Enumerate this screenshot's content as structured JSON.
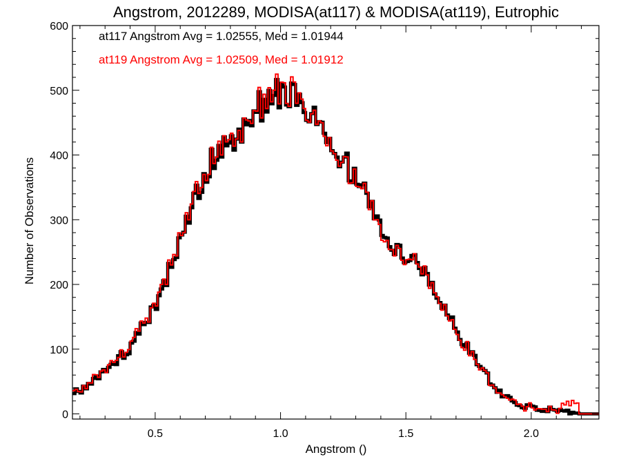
{
  "chart_data": {
    "type": "step-histogram",
    "title": "Angstrom, 2012289, MODISA(at117) & MODISA(at119), Eutrophic",
    "xlabel": "Angstrom ()",
    "ylabel": "Number of Observations",
    "xlim": [
      0.17,
      2.27
    ],
    "ylim": [
      -8,
      600
    ],
    "xticks": [
      0.5,
      1.0,
      1.5,
      2.0
    ],
    "xtick_labels": [
      "0.5",
      "1.0",
      "1.5",
      "2.0"
    ],
    "yticks": [
      0,
      100,
      200,
      300,
      400,
      500,
      600
    ],
    "ytick_labels": [
      "0",
      "100",
      "200",
      "300",
      "400",
      "500",
      "600"
    ],
    "grid": false,
    "legend_placement": "top-left",
    "legend": [
      {
        "text": "at117 Angstrom Avg = 1.02555, Med = 1.01944",
        "color": "#000000"
      },
      {
        "text": "at119 Angstrom Avg = 1.02509, Med = 1.01912",
        "color": "#ff0000"
      }
    ],
    "series": [
      {
        "name": "at117",
        "color": "#000000",
        "x": [
          0.2,
          0.3,
          0.4,
          0.45,
          0.5,
          0.55,
          0.6,
          0.65,
          0.7,
          0.75,
          0.8,
          0.85,
          0.9,
          0.95,
          1.0,
          1.05,
          1.1,
          1.15,
          1.2,
          1.25,
          1.3,
          1.35,
          1.4,
          1.45,
          1.5,
          1.55,
          1.6,
          1.65,
          1.7,
          1.75,
          1.8,
          1.85,
          1.9,
          1.95,
          2.0,
          2.05,
          2.1,
          2.15
        ],
        "y": [
          35,
          68,
          100,
          135,
          165,
          215,
          265,
          330,
          375,
          400,
          420,
          445,
          470,
          480,
          500,
          490,
          480,
          440,
          420,
          395,
          365,
          330,
          290,
          260,
          245,
          235,
          205,
          170,
          130,
          100,
          70,
          45,
          25,
          15,
          10,
          8,
          5,
          3
        ]
      },
      {
        "name": "at119",
        "color": "#ff0000",
        "x": [
          0.2,
          0.3,
          0.4,
          0.45,
          0.5,
          0.55,
          0.6,
          0.65,
          0.7,
          0.75,
          0.8,
          0.85,
          0.9,
          0.95,
          1.0,
          1.05,
          1.1,
          1.15,
          1.2,
          1.25,
          1.3,
          1.35,
          1.4,
          1.45,
          1.5,
          1.55,
          1.6,
          1.65,
          1.7,
          1.75,
          1.8,
          1.85,
          1.9,
          1.95,
          2.0,
          2.05,
          2.1,
          2.15
        ],
        "y": [
          37,
          70,
          102,
          138,
          168,
          218,
          268,
          333,
          378,
          403,
          423,
          448,
          473,
          483,
          505,
          495,
          485,
          437,
          418,
          392,
          362,
          327,
          287,
          258,
          243,
          233,
          202,
          168,
          128,
          98,
          68,
          43,
          24,
          14,
          9,
          7,
          4,
          20
        ]
      }
    ]
  }
}
